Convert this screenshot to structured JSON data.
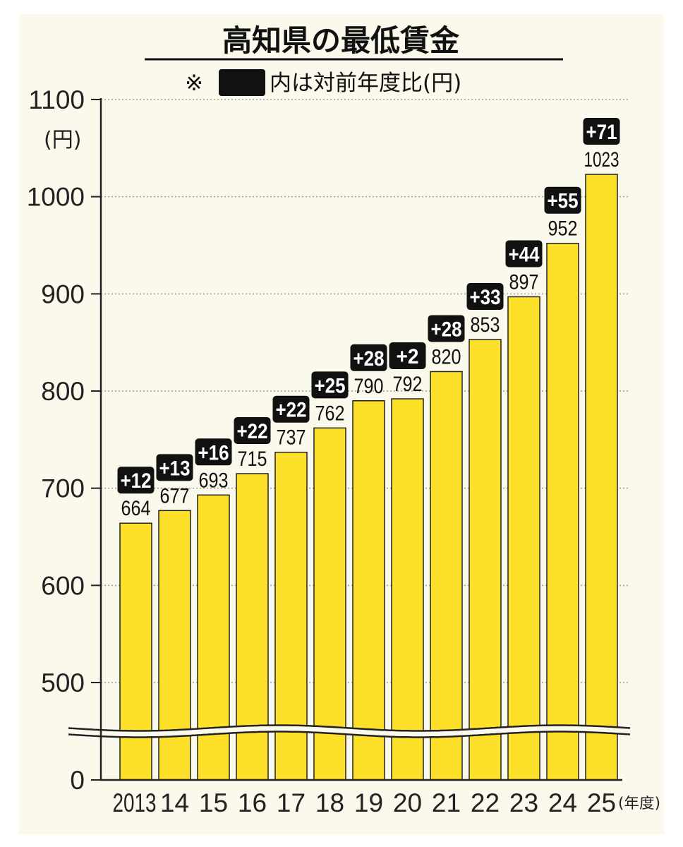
{
  "chart_data": {
    "type": "bar",
    "title": "高知県の最低賃金",
    "note": {
      "mark": "※",
      "text": "内は対前年度比(円)"
    },
    "ylabel_unit": "(円)",
    "xlabel_unit": "(年度)",
    "categories": [
      "2013",
      "14",
      "15",
      "16",
      "17",
      "18",
      "19",
      "20",
      "21",
      "22",
      "23",
      "24",
      "25"
    ],
    "values": [
      664,
      677,
      693,
      715,
      737,
      762,
      790,
      792,
      820,
      853,
      897,
      952,
      1023
    ],
    "diffs": [
      "+12",
      "+13",
      "+16",
      "+22",
      "+22",
      "+25",
      "+28",
      "+2",
      "+28",
      "+33",
      "+44",
      "+55",
      "+71"
    ],
    "ylim": [
      450,
      1100
    ],
    "axis_break_below": 470,
    "yticks": [
      {
        "value": 1100,
        "label": "1100"
      },
      {
        "value": 1000,
        "label": "1000"
      },
      {
        "value": 900,
        "label": "900"
      },
      {
        "value": 800,
        "label": "800"
      },
      {
        "value": 700,
        "label": "700"
      },
      {
        "value": 600,
        "label": "600"
      },
      {
        "value": 500,
        "label": "500"
      }
    ],
    "ybase_label": "0",
    "grid": true,
    "colors": {
      "bar": "#fde02a",
      "background": "#fbf8ec",
      "badge": "#111111",
      "grid": "#9a9a9a"
    }
  }
}
